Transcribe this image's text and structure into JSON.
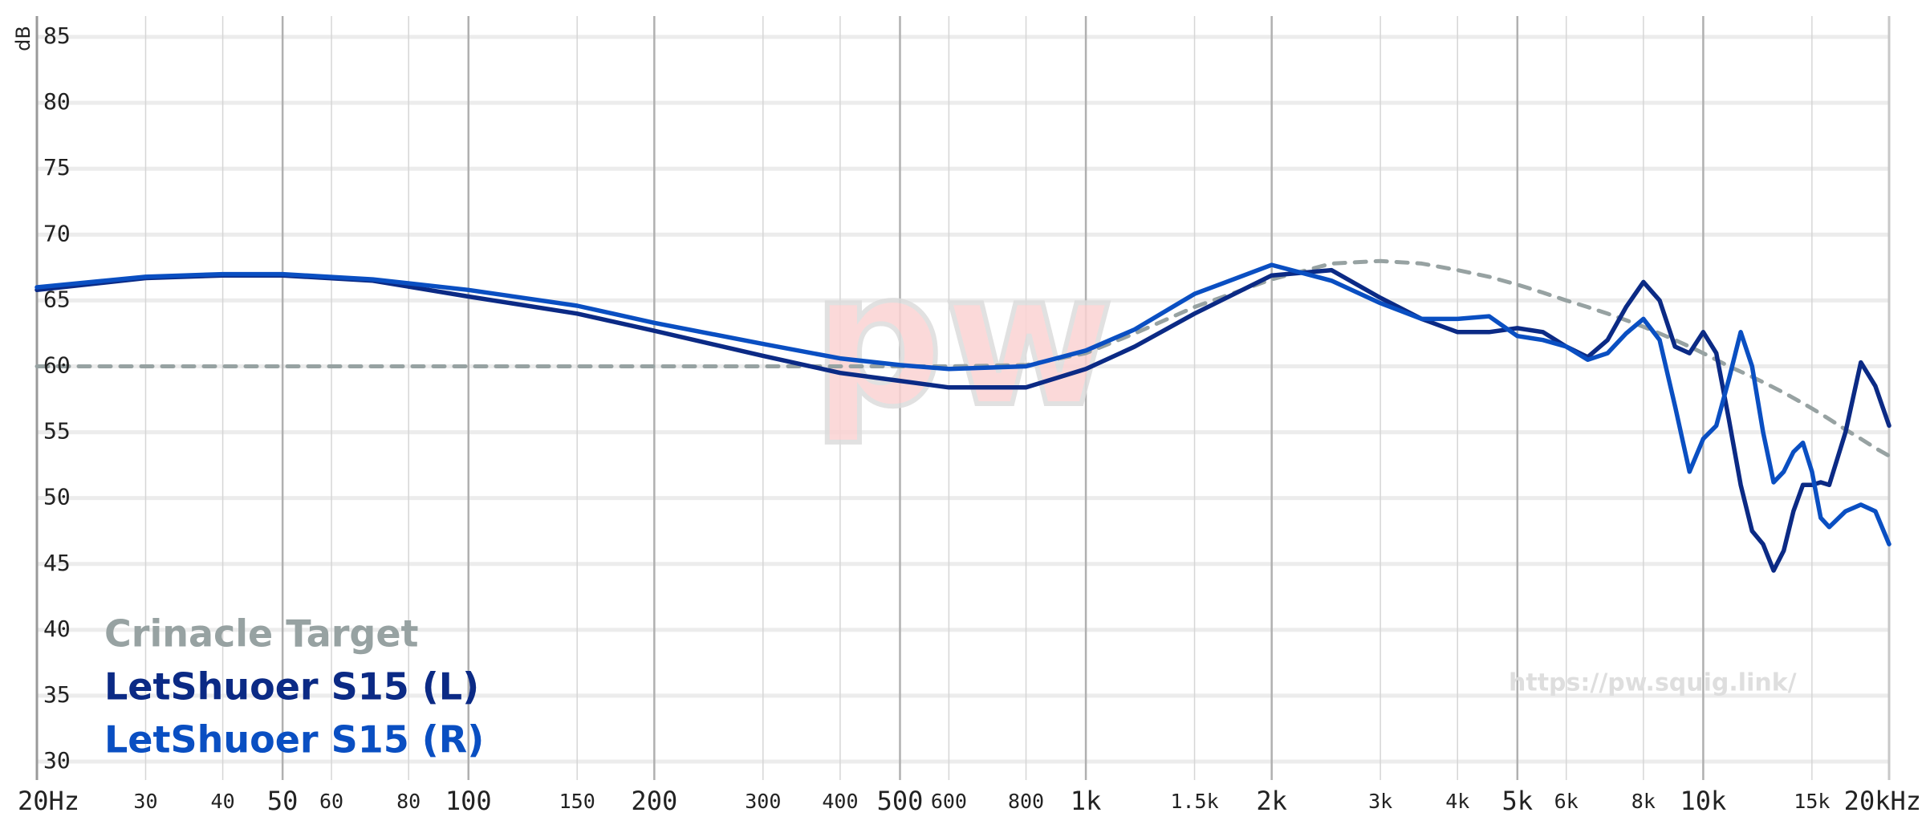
{
  "chart_data": {
    "type": "line",
    "y_label": "dB",
    "log_x": true,
    "grid": true,
    "legend": "lower left",
    "watermark": "pw",
    "url": "https://pw.squig.link/",
    "xlim": [
      20,
      20000
    ],
    "ylim": [
      28.6,
      86.1
    ],
    "yticks": [
      30,
      35,
      40,
      45,
      50,
      55,
      60,
      65,
      70,
      75,
      80,
      85
    ],
    "xticks": [
      {
        "value": 20,
        "label": "20Hz"
      },
      30,
      40,
      50,
      60,
      80,
      100,
      150,
      200,
      300,
      400,
      500,
      600,
      800,
      {
        "value": 1000,
        "label": "1k"
      },
      {
        "value": 1500,
        "label": "1.5k"
      },
      {
        "value": 2000,
        "label": "2k"
      },
      {
        "value": 3000,
        "label": "3k"
      },
      {
        "value": 4000,
        "label": "4k"
      },
      {
        "value": 5000,
        "label": "5k"
      },
      {
        "value": 6000,
        "label": "6k"
      },
      {
        "value": 8000,
        "label": "8k"
      },
      {
        "value": 10000,
        "label": "10k"
      },
      {
        "value": 15000,
        "label": "15k"
      },
      {
        "value": 20000,
        "label": "20kHz"
      }
    ],
    "x": [
      20,
      30,
      40,
      50,
      70,
      100,
      150,
      200,
      300,
      400,
      500,
      600,
      800,
      1000,
      1200,
      1500,
      2000,
      2500,
      3000,
      3500,
      4000,
      4500,
      5000,
      5500,
      6000,
      6500,
      7000,
      7500,
      8000,
      8500,
      9000,
      9500,
      10000,
      10500,
      11000,
      11500,
      12000,
      12500,
      13000,
      13500,
      14000,
      14500,
      15000,
      15500,
      16000,
      17000,
      18000,
      19000,
      20000
    ],
    "series": [
      {
        "name": "Crinacle Target",
        "color": "#97a2a2",
        "dashed": true,
        "values": [
          60,
          60,
          60,
          60,
          60,
          60,
          60,
          60,
          60,
          60,
          60,
          60,
          60.1,
          61,
          62.5,
          64.5,
          66.6,
          67.8,
          68,
          67.8,
          67.3,
          66.8,
          66.2,
          65.6,
          65,
          64.5,
          64,
          63.5,
          63,
          62.5,
          62,
          61.5,
          61,
          60.5,
          60,
          59.6,
          59.2,
          58.8,
          58.4,
          58,
          57.6,
          57.2,
          56.8,
          56.4,
          56,
          55.2,
          54.5,
          53.8,
          53.2
        ]
      },
      {
        "name": "LetShuoer S15 (L)",
        "color": "#0b2a85",
        "values": [
          65.8,
          66.7,
          66.9,
          66.9,
          66.5,
          65.3,
          64,
          62.7,
          60.8,
          59.5,
          58.9,
          58.4,
          58.4,
          59.8,
          61.5,
          64,
          66.9,
          67.3,
          65.2,
          63.6,
          62.6,
          62.6,
          62.9,
          62.6,
          61.5,
          60.7,
          62,
          64.5,
          66.4,
          65,
          61.5,
          61,
          62.6,
          61,
          56,
          51,
          47.5,
          46.5,
          44.5,
          46,
          49,
          51,
          51,
          51.2,
          51,
          55,
          60.3,
          58.5,
          55.5
        ]
      },
      {
        "name": "LetShuoer S15 (R)",
        "color": "#0a4fc2",
        "values": [
          66,
          66.8,
          67,
          67,
          66.6,
          65.8,
          64.6,
          63.3,
          61.7,
          60.6,
          60.1,
          59.8,
          60,
          61.2,
          62.8,
          65.5,
          67.7,
          66.5,
          64.8,
          63.6,
          63.6,
          63.8,
          62.3,
          62,
          61.5,
          60.5,
          61,
          62.5,
          63.6,
          62,
          57,
          52,
          54.5,
          55.5,
          59,
          62.6,
          60,
          55,
          51.2,
          52,
          53.5,
          54.2,
          52,
          48.5,
          47.8,
          49,
          49.5,
          49,
          46.5
        ]
      }
    ]
  }
}
